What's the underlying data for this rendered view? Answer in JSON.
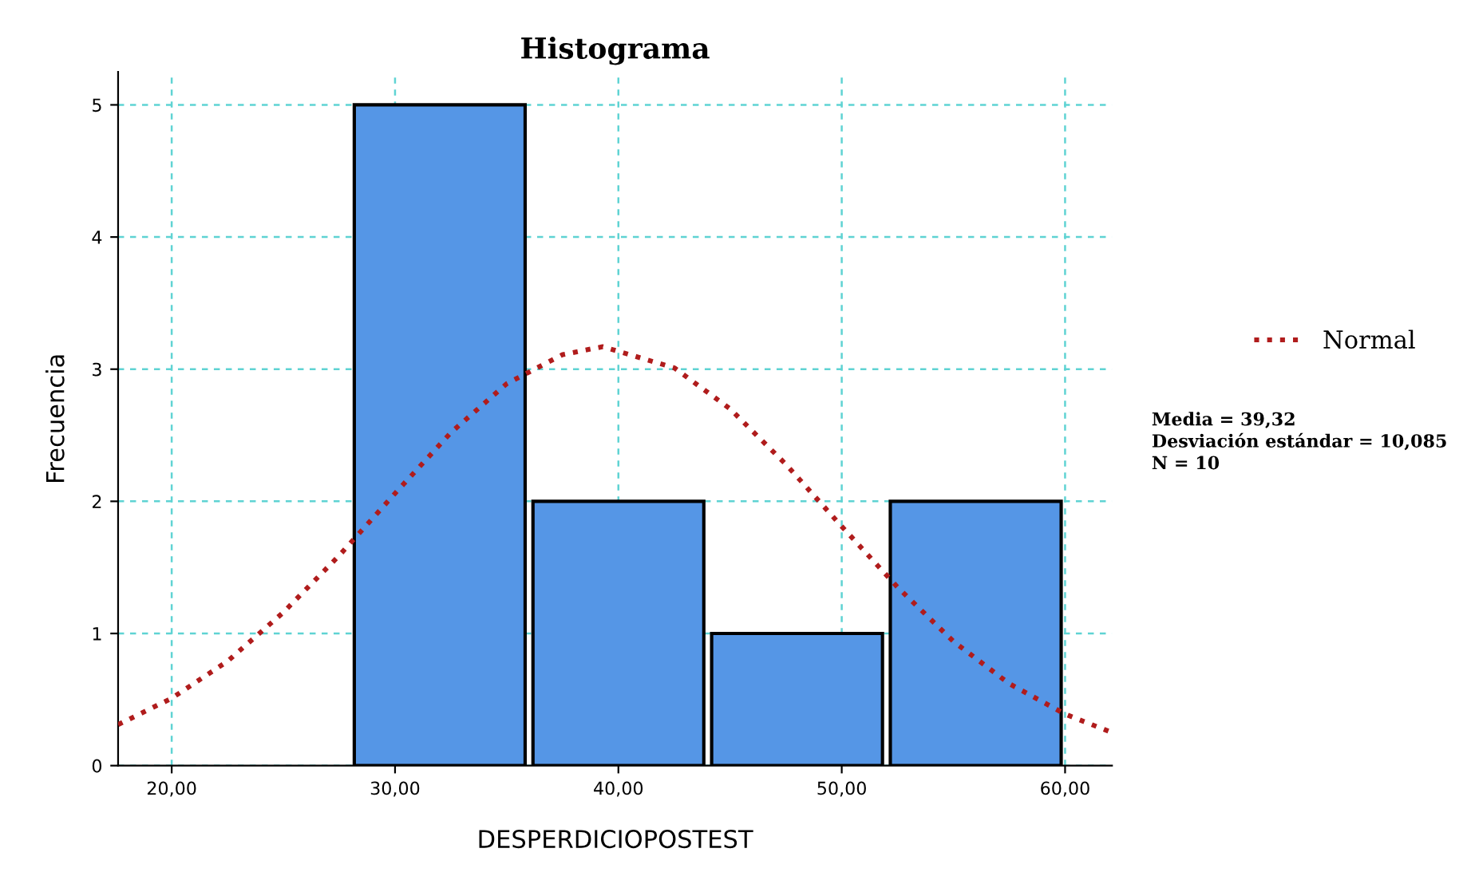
{
  "chart_data": {
    "type": "histogram",
    "title": "Histograma",
    "xlabel": "DESPERDICIOPOSTEST",
    "ylabel": "Frecuencia",
    "bins": [
      28,
      36,
      44,
      52,
      60
    ],
    "values": [
      5,
      2,
      1,
      2
    ],
    "color": "#5596e6",
    "series": [
      {
        "name": "Normal",
        "type": "line",
        "color": "#b01c1c",
        "line_style": "dotted",
        "x": [
          17.6,
          20,
          22.5,
          25,
          27.5,
          30,
          32.5,
          35,
          37.5,
          39.3,
          42.5,
          45,
          47.5,
          50,
          52.5,
          55,
          57.5,
          60,
          62.1
        ],
        "values": [
          0.31,
          0.51,
          0.79,
          1.16,
          1.59,
          2.06,
          2.52,
          2.89,
          3.11,
          3.17,
          3.01,
          2.7,
          2.28,
          1.81,
          1.35,
          0.94,
          0.62,
          0.39,
          0.25
        ]
      }
    ],
    "xlim": [
      17.6,
      62.1
    ],
    "ylim": [
      0,
      5.25
    ],
    "xticks": [
      {
        "value": 20,
        "label": "20,00"
      },
      {
        "value": 30,
        "label": "30,00"
      },
      {
        "value": 40,
        "label": "40,00"
      },
      {
        "value": 50,
        "label": "50,00"
      },
      {
        "value": 60,
        "label": "60,00"
      }
    ],
    "yticks": [
      0,
      1,
      2,
      3,
      4,
      5
    ],
    "grid": true,
    "legend": "right",
    "annotations": [
      "Media = 39,32",
      "Desviación estándar = 10,085",
      "N = 10"
    ]
  }
}
